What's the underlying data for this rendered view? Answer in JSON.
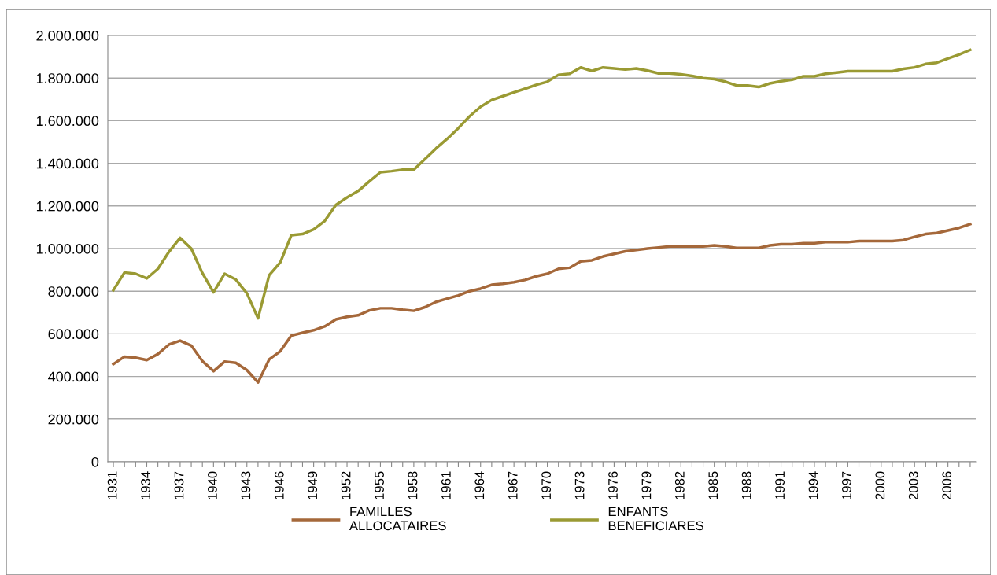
{
  "chart_data": {
    "type": "line",
    "categories": [
      "1931",
      null,
      null,
      "1934",
      null,
      null,
      "1937",
      null,
      null,
      "1940",
      null,
      null,
      "1943",
      null,
      null,
      "1946",
      null,
      null,
      "1949",
      null,
      null,
      "1952",
      null,
      null,
      "1955",
      null,
      null,
      "1958",
      null,
      null,
      "1961",
      null,
      null,
      "1964",
      null,
      null,
      "1967",
      null,
      null,
      "1970",
      null,
      null,
      "1973",
      null,
      null,
      "1976",
      null,
      null,
      "1979",
      null,
      null,
      "1982",
      null,
      null,
      "1985",
      null,
      null,
      "1988",
      null,
      null,
      "1991",
      null,
      null,
      "1994",
      null,
      null,
      "1997",
      null,
      null,
      "2000",
      null,
      null,
      "2003",
      null,
      null,
      "2006",
      null,
      null
    ],
    "series": [
      {
        "name": "FAMILLES ALLOCATAIRES",
        "color": "#a5683a",
        "values": [
          458000,
          493000,
          488000,
          477000,
          505000,
          550000,
          568000,
          545000,
          472000,
          425000,
          470000,
          464000,
          430000,
          372000,
          480000,
          518000,
          592000,
          605000,
          617000,
          635000,
          668000,
          680000,
          687000,
          710000,
          720000,
          720000,
          713000,
          708000,
          725000,
          750000,
          765000,
          780000,
          800000,
          812000,
          830000,
          835000,
          842000,
          853000,
          870000,
          882000,
          905000,
          910000,
          940000,
          945000,
          963000,
          975000,
          987000,
          993000,
          1000000,
          1005000,
          1010000,
          1010000,
          1010000,
          1010000,
          1015000,
          1010000,
          1003000,
          1003000,
          1003000,
          1015000,
          1020000,
          1020000,
          1025000,
          1025000,
          1030000,
          1030000,
          1030000,
          1035000,
          1035000,
          1035000,
          1035000,
          1040000,
          1055000,
          1068000,
          1073000,
          1085000,
          1097000,
          1115000
        ]
      },
      {
        "name": "ENFANTS BENEFICIARES",
        "color": "#9a9a33",
        "values": [
          805000,
          888000,
          882000,
          860000,
          905000,
          985000,
          1050000,
          1000000,
          885000,
          795000,
          882000,
          855000,
          790000,
          673000,
          875000,
          935000,
          1063000,
          1068000,
          1090000,
          1130000,
          1205000,
          1240000,
          1270000,
          1315000,
          1358000,
          1363000,
          1370000,
          1370000,
          1420000,
          1470000,
          1515000,
          1565000,
          1620000,
          1665000,
          1697000,
          1715000,
          1733000,
          1750000,
          1768000,
          1783000,
          1815000,
          1820000,
          1850000,
          1833000,
          1850000,
          1845000,
          1840000,
          1845000,
          1835000,
          1822000,
          1822000,
          1817000,
          1810000,
          1800000,
          1795000,
          1783000,
          1765000,
          1765000,
          1758000,
          1775000,
          1785000,
          1792000,
          1808000,
          1808000,
          1820000,
          1826000,
          1832000,
          1832000,
          1832000,
          1832000,
          1832000,
          1843000,
          1850000,
          1866000,
          1872000,
          1892000,
          1910000,
          1932000
        ]
      }
    ],
    "ylim": [
      0,
      2000000
    ],
    "yticks": [
      0,
      {
        "value": 200000,
        "label": "200.000"
      },
      {
        "value": 400000,
        "label": "400.000"
      },
      {
        "value": 600000,
        "label": "600.000"
      },
      {
        "value": 800000,
        "label": "800.000"
      },
      {
        "value": 1000000,
        "label": "1.000.000"
      },
      {
        "value": 1200000,
        "label": "1.200.000"
      },
      {
        "value": 1400000,
        "label": "1.400.000"
      },
      {
        "value": 1600000,
        "label": "1.600.000"
      },
      {
        "value": 1800000,
        "label": "1.800.000"
      },
      {
        "value": 2000000,
        "label": "2.000.000"
      }
    ],
    "grid": "y",
    "legend": "bottom",
    "marker": "none",
    "line_style": "solid"
  }
}
